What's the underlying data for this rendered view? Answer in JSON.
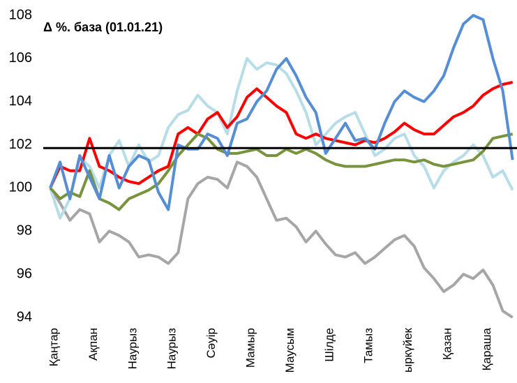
{
  "chart_data": {
    "type": "line",
    "title": "Δ %. база (01.01.21)",
    "categories": [
      "Қаңтар",
      null,
      null,
      null,
      "Ақпан",
      null,
      null,
      null,
      "Наурыз",
      null,
      null,
      null,
      "Наурыз",
      null,
      null,
      null,
      "Сәуір",
      null,
      null,
      null,
      "Мамыр",
      null,
      null,
      null,
      "Маусым",
      null,
      null,
      null,
      "Шілде",
      null,
      null,
      null,
      "Тамыз",
      null,
      null,
      null,
      "ыркүйек",
      null,
      null,
      null,
      "Қазан",
      null,
      null,
      null,
      "Қараша",
      null,
      null,
      null
    ],
    "ylim": [
      94,
      108
    ],
    "yticks": [
      94,
      96,
      98,
      100,
      102,
      104,
      106,
      108
    ],
    "hline": 101.85,
    "hline_color": "#000000",
    "series": [
      {
        "color": "#a6a6a6",
        "values": [
          100,
          99.3,
          98.5,
          99,
          98.8,
          97.5,
          98,
          97.8,
          97.5,
          96.8,
          96.9,
          96.8,
          96.5,
          97,
          99.5,
          100.2,
          100.5,
          100.4,
          100,
          101.2,
          101,
          100.5,
          99.5,
          98.5,
          98.6,
          98.2,
          97.5,
          98,
          97.4,
          96.9,
          96.8,
          97,
          96.5,
          96.8,
          97.2,
          97.6,
          97.8,
          97.3,
          96.3,
          95.8,
          95.2,
          95.5,
          96,
          95.8,
          96.2,
          95.5,
          94.3,
          94
        ]
      },
      {
        "color": "#b7dde8",
        "values": [
          100,
          98.6,
          99.5,
          101.4,
          101,
          100,
          101.5,
          102.2,
          101,
          102,
          101.2,
          101.5,
          102.8,
          103.4,
          103.6,
          104.3,
          103.8,
          103.5,
          102.5,
          104.5,
          106,
          105.5,
          105.8,
          105.7,
          105.3,
          104.5,
          103.5,
          102,
          102.5,
          103,
          103.3,
          103.5,
          102.5,
          101.5,
          101.8,
          102.3,
          102.5,
          101.5,
          101,
          100,
          100.8,
          101.2,
          101.5,
          102,
          101.5,
          100.5,
          100.8,
          99.9
        ]
      },
      {
        "color": "#ff0000",
        "values": [
          100,
          101,
          100.8,
          100.8,
          102.3,
          101,
          100.8,
          100.5,
          100.3,
          100.2,
          100.5,
          100.8,
          101,
          102.5,
          102.8,
          102.5,
          103.2,
          103.5,
          102.8,
          103.3,
          104.2,
          104.6,
          104.2,
          103.8,
          103.5,
          102.5,
          102.3,
          102.5,
          102.3,
          102.2,
          102.1,
          102,
          102.2,
          102.1,
          102.3,
          102.6,
          103,
          102.7,
          102.5,
          102.5,
          102.9,
          103.3,
          103.5,
          103.8,
          104.3,
          104.6,
          104.8,
          104.9
        ]
      },
      {
        "color": "#77933c",
        "values": [
          100,
          99.5,
          99.8,
          99.6,
          100.8,
          99.5,
          99.3,
          99,
          99.5,
          99.7,
          99.9,
          100.2,
          100.8,
          101.5,
          102,
          102.5,
          102.3,
          101.8,
          101.6,
          101.6,
          101.7,
          101.8,
          101.5,
          101.5,
          101.8,
          101.6,
          101.8,
          101.6,
          101.3,
          101.1,
          101,
          101,
          101,
          101.1,
          101.2,
          101.3,
          101.3,
          101.2,
          101.3,
          101.1,
          101,
          101.1,
          101.2,
          101.3,
          101.7,
          102.3,
          102.4,
          102.5
        ]
      },
      {
        "color": "#558ed5",
        "values": [
          100,
          101.2,
          99.5,
          101.5,
          100.5,
          99.5,
          101.5,
          100,
          101,
          101.5,
          101.3,
          99.8,
          99,
          102,
          101.8,
          101.8,
          102.5,
          102.3,
          101.5,
          103,
          103.2,
          104,
          104.5,
          105.5,
          106,
          105.2,
          104.2,
          103.5,
          101.6,
          102.3,
          103,
          102.2,
          102.3,
          101.8,
          103,
          104,
          104.5,
          104.2,
          104,
          104.5,
          105.2,
          106.5,
          107.6,
          108,
          107.8,
          106,
          104.5,
          101.3
        ]
      }
    ]
  }
}
